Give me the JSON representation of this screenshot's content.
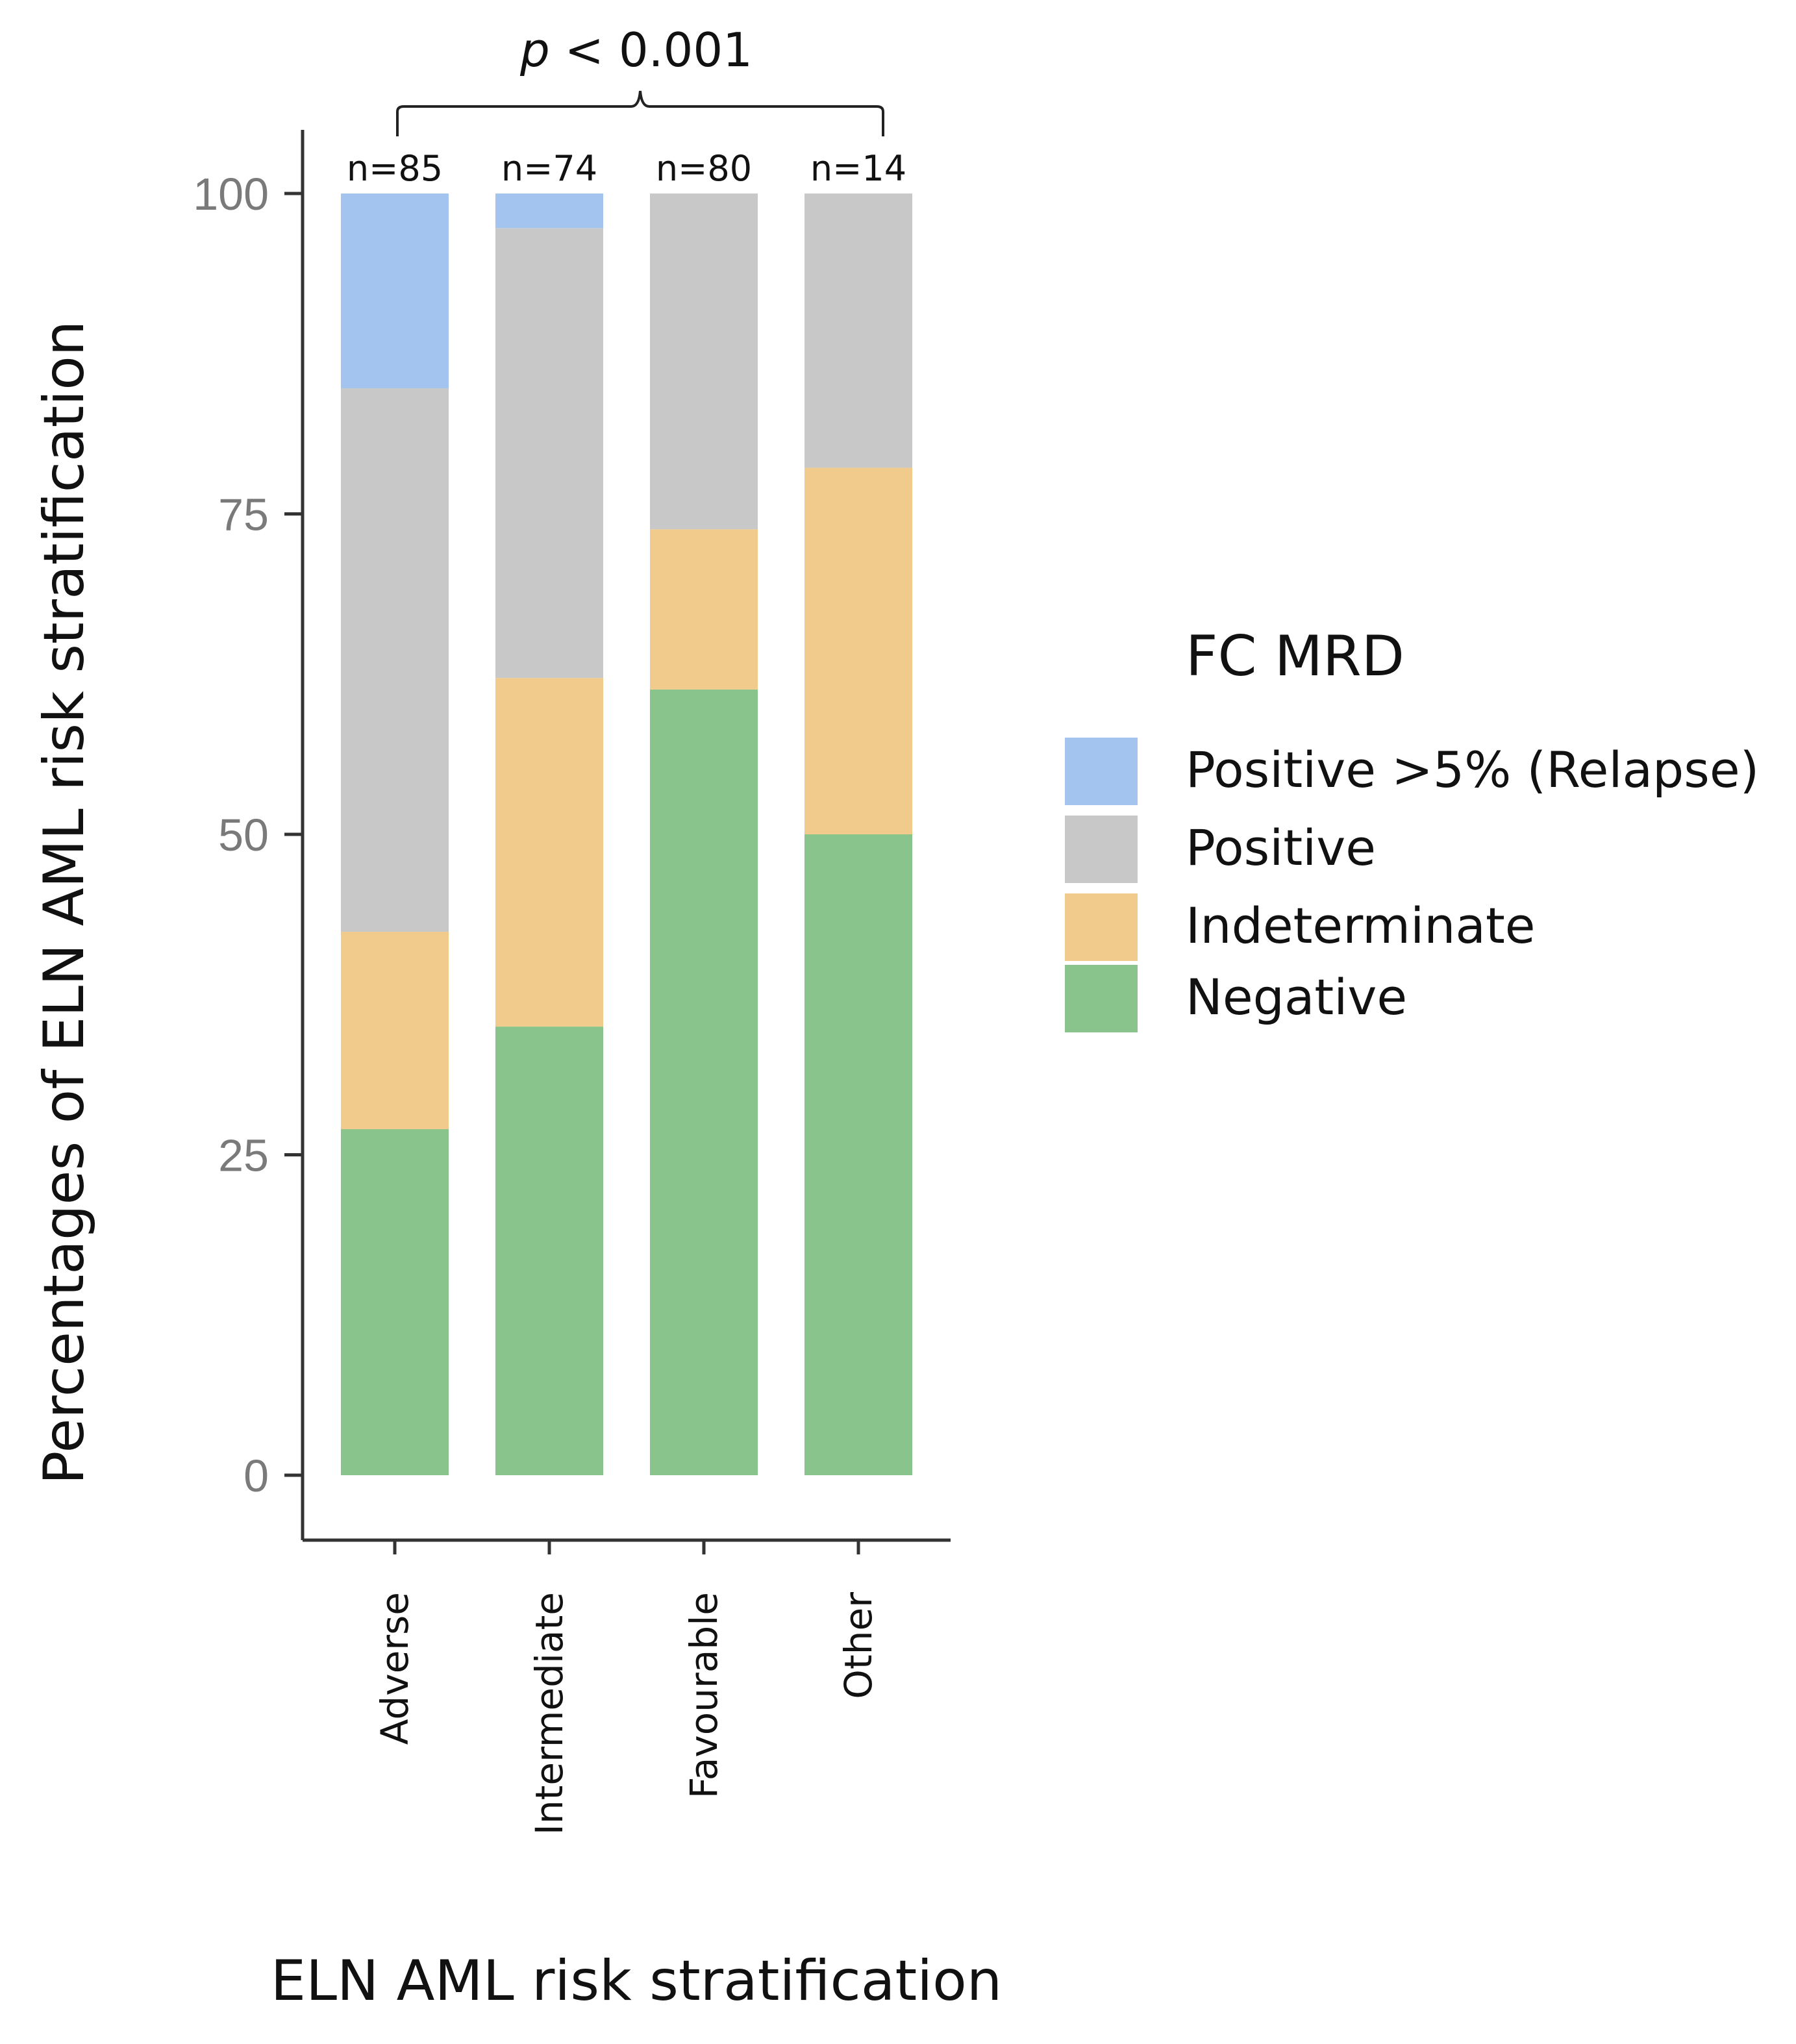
{
  "chart_data": {
    "type": "bar",
    "stacked": true,
    "categories": [
      "Adverse",
      "Intermediate",
      "Favourable",
      "Other"
    ],
    "n_labels": [
      "n=85",
      "n=74",
      "n=80",
      "n=14"
    ],
    "series": [
      {
        "name": "Negative",
        "color": "#88c48c",
        "values": [
          27,
          35,
          61.3,
          50
        ]
      },
      {
        "name": "Indeterminate",
        "color": "#f0cb8c",
        "values": [
          15.4,
          27.2,
          12.5,
          28.6
        ]
      },
      {
        "name": "Positive",
        "color": "#c8c8c8",
        "values": [
          42.4,
          35.1,
          26.2,
          21.4
        ]
      },
      {
        "name": "Positive >5% (Relapse)",
        "color": "#a4c4f0",
        "values": [
          15.2,
          2.7,
          0,
          0
        ]
      }
    ],
    "legend_order": [
      "Positive >5% (Relapse)",
      "Positive",
      "Indeterminate",
      "Negative"
    ],
    "legend_title": "FC MRD",
    "xlabel": "ELN AML risk stratification",
    "ylabel": "Percentages of ELN AML risk stratification",
    "yticks": [
      0,
      25,
      50,
      75,
      100
    ],
    "ylim": [
      0,
      100
    ],
    "annotation": {
      "p_italic": "p",
      "p_rest": " < 0.001"
    },
    "legend_position": "right"
  }
}
